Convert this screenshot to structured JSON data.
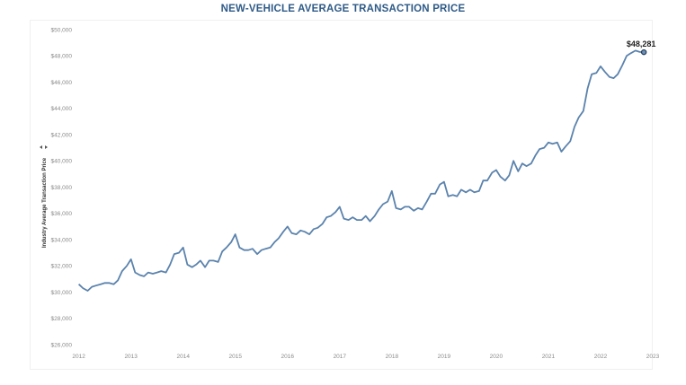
{
  "colors": {
    "title": "#2e5a87",
    "line": "#5b83ad",
    "marker_stroke": "#1f3b5a",
    "marker_fill": "#6f8fb3"
  },
  "chart_data": {
    "type": "line",
    "title": "NEW-VEHICLE AVERAGE TRANSACTION PRICE",
    "xlabel": "",
    "ylabel": "Industry Average Transaction Price",
    "ylabel_icon": "sort-icon",
    "xlim": [
      2011.92,
      2023.0
    ],
    "ylim": [
      26000,
      50000
    ],
    "x_ticks": [
      "2012",
      "2013",
      "2014",
      "2015",
      "2016",
      "2017",
      "2018",
      "2019",
      "2020",
      "2021",
      "2022",
      "2023"
    ],
    "y_ticks": [
      "$26,000",
      "$28,000",
      "$30,000",
      "$32,000",
      "$34,000",
      "$36,000",
      "$38,000",
      "$40,000",
      "$42,000",
      "$44,000",
      "$46,000",
      "$48,000",
      "$50,000"
    ],
    "grid": false,
    "end_label": "$48,281",
    "series": [
      {
        "points": [
          [
            2012.0,
            30600
          ],
          [
            2012.08,
            30300
          ],
          [
            2012.17,
            30100
          ],
          [
            2012.25,
            30400
          ],
          [
            2012.33,
            30500
          ],
          [
            2012.42,
            30600
          ],
          [
            2012.5,
            30700
          ],
          [
            2012.58,
            30700
          ],
          [
            2012.67,
            30600
          ],
          [
            2012.75,
            30900
          ],
          [
            2012.83,
            31600
          ],
          [
            2012.92,
            32000
          ],
          [
            2013.0,
            32500
          ],
          [
            2013.08,
            31500
          ],
          [
            2013.17,
            31300
          ],
          [
            2013.25,
            31200
          ],
          [
            2013.33,
            31500
          ],
          [
            2013.42,
            31400
          ],
          [
            2013.5,
            31500
          ],
          [
            2013.58,
            31600
          ],
          [
            2013.67,
            31500
          ],
          [
            2013.75,
            32100
          ],
          [
            2013.83,
            32900
          ],
          [
            2013.92,
            33000
          ],
          [
            2014.0,
            33400
          ],
          [
            2014.08,
            32100
          ],
          [
            2014.17,
            31900
          ],
          [
            2014.25,
            32100
          ],
          [
            2014.33,
            32400
          ],
          [
            2014.42,
            31900
          ],
          [
            2014.5,
            32400
          ],
          [
            2014.58,
            32400
          ],
          [
            2014.67,
            32300
          ],
          [
            2014.75,
            33100
          ],
          [
            2014.83,
            33400
          ],
          [
            2014.92,
            33800
          ],
          [
            2015.0,
            34400
          ],
          [
            2015.08,
            33400
          ],
          [
            2015.17,
            33200
          ],
          [
            2015.25,
            33200
          ],
          [
            2015.33,
            33300
          ],
          [
            2015.42,
            32900
          ],
          [
            2015.5,
            33200
          ],
          [
            2015.58,
            33300
          ],
          [
            2015.67,
            33400
          ],
          [
            2015.75,
            33800
          ],
          [
            2015.83,
            34100
          ],
          [
            2015.92,
            34600
          ],
          [
            2016.0,
            35000
          ],
          [
            2016.08,
            34500
          ],
          [
            2016.17,
            34400
          ],
          [
            2016.25,
            34700
          ],
          [
            2016.33,
            34600
          ],
          [
            2016.42,
            34400
          ],
          [
            2016.5,
            34800
          ],
          [
            2016.58,
            34900
          ],
          [
            2016.67,
            35200
          ],
          [
            2016.75,
            35700
          ],
          [
            2016.83,
            35800
          ],
          [
            2016.92,
            36100
          ],
          [
            2017.0,
            36500
          ],
          [
            2017.08,
            35600
          ],
          [
            2017.17,
            35500
          ],
          [
            2017.25,
            35700
          ],
          [
            2017.33,
            35500
          ],
          [
            2017.42,
            35500
          ],
          [
            2017.5,
            35800
          ],
          [
            2017.58,
            35400
          ],
          [
            2017.67,
            35800
          ],
          [
            2017.75,
            36300
          ],
          [
            2017.83,
            36700
          ],
          [
            2017.92,
            36900
          ],
          [
            2018.0,
            37700
          ],
          [
            2018.08,
            36400
          ],
          [
            2018.17,
            36300
          ],
          [
            2018.25,
            36500
          ],
          [
            2018.33,
            36500
          ],
          [
            2018.42,
            36200
          ],
          [
            2018.5,
            36400
          ],
          [
            2018.58,
            36300
          ],
          [
            2018.67,
            36900
          ],
          [
            2018.75,
            37500
          ],
          [
            2018.83,
            37500
          ],
          [
            2018.92,
            38200
          ],
          [
            2019.0,
            38400
          ],
          [
            2019.08,
            37300
          ],
          [
            2019.17,
            37400
          ],
          [
            2019.25,
            37300
          ],
          [
            2019.33,
            37800
          ],
          [
            2019.42,
            37600
          ],
          [
            2019.5,
            37800
          ],
          [
            2019.58,
            37600
          ],
          [
            2019.67,
            37700
          ],
          [
            2019.75,
            38500
          ],
          [
            2019.83,
            38500
          ],
          [
            2019.92,
            39100
          ],
          [
            2020.0,
            39300
          ],
          [
            2020.08,
            38800
          ],
          [
            2020.17,
            38500
          ],
          [
            2020.25,
            38900
          ],
          [
            2020.33,
            40000
          ],
          [
            2020.42,
            39200
          ],
          [
            2020.5,
            39800
          ],
          [
            2020.58,
            39600
          ],
          [
            2020.67,
            39800
          ],
          [
            2020.75,
            40400
          ],
          [
            2020.83,
            40900
          ],
          [
            2020.92,
            41000
          ],
          [
            2021.0,
            41400
          ],
          [
            2021.08,
            41300
          ],
          [
            2021.17,
            41400
          ],
          [
            2021.25,
            40700
          ],
          [
            2021.33,
            41100
          ],
          [
            2021.42,
            41500
          ],
          [
            2021.5,
            42600
          ],
          [
            2021.58,
            43300
          ],
          [
            2021.67,
            43800
          ],
          [
            2021.75,
            45500
          ],
          [
            2021.83,
            46600
          ],
          [
            2021.92,
            46700
          ],
          [
            2022.0,
            47200
          ],
          [
            2022.08,
            46800
          ],
          [
            2022.17,
            46400
          ],
          [
            2022.25,
            46300
          ],
          [
            2022.33,
            46600
          ],
          [
            2022.42,
            47300
          ],
          [
            2022.5,
            48000
          ],
          [
            2022.58,
            48200
          ],
          [
            2022.67,
            48400
          ],
          [
            2022.75,
            48300
          ],
          [
            2022.83,
            48281
          ]
        ]
      }
    ]
  }
}
